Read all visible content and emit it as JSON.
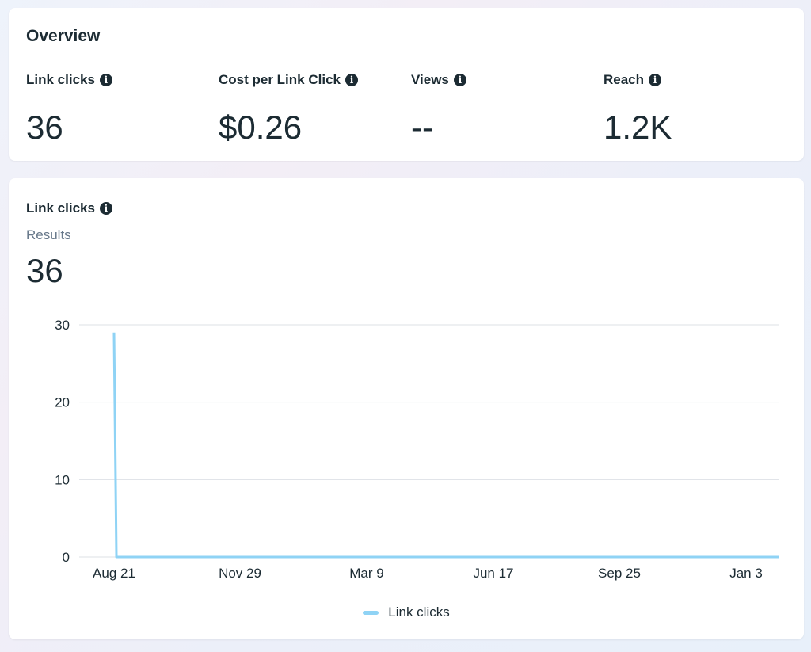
{
  "overview": {
    "title": "Overview",
    "metrics": [
      {
        "label": "Link clicks",
        "value": "36"
      },
      {
        "label": "Cost per Link Click",
        "value": "$0.26"
      },
      {
        "label": "Views",
        "value": "--"
      },
      {
        "label": "Reach",
        "value": "1.2K"
      }
    ]
  },
  "chart_card": {
    "title": "Link clicks",
    "subtitle": "Results",
    "total": "36"
  },
  "colors": {
    "line": "#8fd3f5",
    "grid": "#dde1e6",
    "text": "#1c2b33",
    "muted": "#67788a"
  },
  "chart_data": {
    "type": "line",
    "title": "",
    "xlabel": "",
    "ylabel": "",
    "ylim": [
      0,
      30
    ],
    "yticks": [
      0,
      10,
      20,
      30
    ],
    "x_tick_labels": [
      "Aug 21",
      "Nov 29",
      "Mar 9",
      "Jun 17",
      "Sep 25",
      "Jan 3"
    ],
    "grid": true,
    "legend_position": "bottom-center",
    "series": [
      {
        "name": "Link clicks",
        "x": [
          "Aug 21",
          "Aug 22",
          "Nov 29",
          "Mar 9",
          "Jun 17",
          "Sep 25",
          "Jan 3",
          "Jan 4"
        ],
        "values": [
          29,
          0,
          0,
          0,
          0,
          0,
          0,
          0
        ]
      }
    ]
  }
}
